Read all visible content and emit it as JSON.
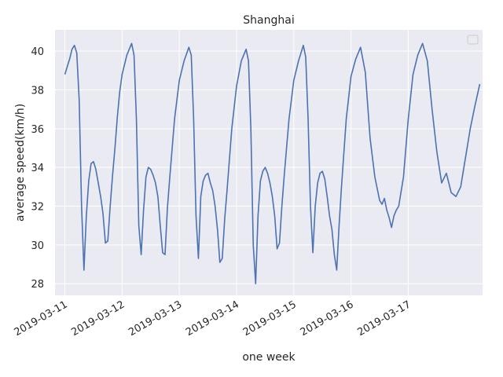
{
  "chart_data": {
    "type": "line",
    "title": "Shanghai",
    "xlabel": "one week",
    "ylabel": "average speed(km/h)",
    "x_ticks": [
      "2019-03-11",
      "2019-03-12",
      "2019-03-13",
      "2019-03-14",
      "2019-03-15",
      "2019-03-16",
      "2019-03-17"
    ],
    "x_range": [
      "2019-03-10T19:52",
      "2019-03-18T07:10"
    ],
    "y_ticks": [
      28,
      30,
      32,
      34,
      36,
      38,
      40
    ],
    "ylim": [
      27.4,
      41.1
    ],
    "grid": true,
    "legend": "top-right, empty",
    "colors": {
      "line": "#4c72b0",
      "background": "#eaeaf2",
      "grid": "#ffffff"
    },
    "series": [
      {
        "x": [
          "2019-03-11T00:00",
          "2019-03-11T01:00",
          "2019-03-11T02:00",
          "2019-03-11T03:00",
          "2019-03-11T04:00",
          "2019-03-11T05:00",
          "2019-03-11T06:00",
          "2019-03-11T07:00",
          "2019-03-11T08:00",
          "2019-03-11T09:00",
          "2019-03-11T10:00",
          "2019-03-11T11:00",
          "2019-03-11T12:00",
          "2019-03-11T13:00",
          "2019-03-11T14:00",
          "2019-03-11T15:00",
          "2019-03-11T16:00",
          "2019-03-11T17:00",
          "2019-03-11T18:00",
          "2019-03-11T19:00",
          "2019-03-11T20:00",
          "2019-03-11T21:00",
          "2019-03-11T22:00",
          "2019-03-11T23:00",
          "2019-03-12T00:00",
          "2019-03-12T02:00",
          "2019-03-12T04:00",
          "2019-03-12T05:00",
          "2019-03-12T06:00",
          "2019-03-12T07:00",
          "2019-03-12T08:00",
          "2019-03-12T09:00",
          "2019-03-12T10:00",
          "2019-03-12T11:00",
          "2019-03-12T12:00",
          "2019-03-12T13:00",
          "2019-03-12T14:00",
          "2019-03-12T15:00",
          "2019-03-12T16:00",
          "2019-03-12T17:00",
          "2019-03-12T18:00",
          "2019-03-12T19:00",
          "2019-03-12T20:00",
          "2019-03-12T22:00",
          "2019-03-13T00:00",
          "2019-03-13T02:00",
          "2019-03-13T04:00",
          "2019-03-13T05:00",
          "2019-03-13T06:00",
          "2019-03-13T07:00",
          "2019-03-13T08:00",
          "2019-03-13T09:00",
          "2019-03-13T10:00",
          "2019-03-13T11:00",
          "2019-03-13T12:00",
          "2019-03-13T13:00",
          "2019-03-13T14:00",
          "2019-03-13T15:00",
          "2019-03-13T16:00",
          "2019-03-13T17:00",
          "2019-03-13T18:00",
          "2019-03-13T19:00",
          "2019-03-13T20:00",
          "2019-03-13T22:00",
          "2019-03-14T00:00",
          "2019-03-14T02:00",
          "2019-03-14T04:00",
          "2019-03-14T05:00",
          "2019-03-14T06:00",
          "2019-03-14T07:00",
          "2019-03-14T08:00",
          "2019-03-14T09:00",
          "2019-03-14T10:00",
          "2019-03-14T11:00",
          "2019-03-14T12:00",
          "2019-03-14T13:00",
          "2019-03-14T14:00",
          "2019-03-14T15:00",
          "2019-03-14T16:00",
          "2019-03-14T17:00",
          "2019-03-14T18:00",
          "2019-03-14T19:00",
          "2019-03-14T20:00",
          "2019-03-14T22:00",
          "2019-03-15T00:00",
          "2019-03-15T02:00",
          "2019-03-15T04:00",
          "2019-03-15T05:00",
          "2019-03-15T06:00",
          "2019-03-15T07:00",
          "2019-03-15T08:00",
          "2019-03-15T09:00",
          "2019-03-15T10:00",
          "2019-03-15T11:00",
          "2019-03-15T12:00",
          "2019-03-15T13:00",
          "2019-03-15T14:00",
          "2019-03-15T15:00",
          "2019-03-15T16:00",
          "2019-03-15T17:00",
          "2019-03-15T18:00",
          "2019-03-15T19:00",
          "2019-03-15T20:00",
          "2019-03-15T22:00",
          "2019-03-16T00:00",
          "2019-03-16T02:00",
          "2019-03-16T04:00",
          "2019-03-16T06:00",
          "2019-03-16T08:00",
          "2019-03-16T10:00",
          "2019-03-16T12:00",
          "2019-03-16T13:00",
          "2019-03-16T14:00",
          "2019-03-16T15:00",
          "2019-03-16T16:00",
          "2019-03-16T17:00",
          "2019-03-16T18:00",
          "2019-03-16T19:00",
          "2019-03-16T20:00",
          "2019-03-16T22:00",
          "2019-03-17T00:00",
          "2019-03-17T02:00",
          "2019-03-17T04:00",
          "2019-03-17T06:00",
          "2019-03-17T08:00",
          "2019-03-17T10:00",
          "2019-03-17T12:00",
          "2019-03-17T14:00",
          "2019-03-17T16:00",
          "2019-03-17T18:00",
          "2019-03-17T20:00",
          "2019-03-17T22:00",
          "2019-03-18T00:00",
          "2019-03-18T02:00",
          "2019-03-18T04:00",
          "2019-03-18T06:00"
        ],
        "y": [
          38.8,
          39.2,
          39.6,
          40.1,
          40.3,
          39.9,
          37.5,
          32.0,
          28.7,
          31.5,
          33.3,
          34.2,
          34.3,
          33.9,
          33.2,
          32.5,
          31.6,
          30.1,
          30.2,
          32.0,
          33.6,
          35.0,
          36.6,
          37.9,
          38.8,
          39.8,
          40.4,
          39.8,
          36.5,
          31.0,
          29.5,
          31.8,
          33.5,
          34.0,
          33.9,
          33.6,
          33.2,
          32.5,
          31.0,
          29.6,
          29.5,
          31.9,
          33.5,
          36.5,
          38.5,
          39.5,
          40.2,
          39.8,
          36.5,
          31.5,
          29.3,
          32.5,
          33.3,
          33.6,
          33.7,
          33.2,
          32.8,
          32.0,
          30.8,
          29.1,
          29.3,
          31.3,
          32.8,
          36.0,
          38.2,
          39.5,
          40.1,
          39.5,
          36.0,
          30.0,
          28.0,
          31.5,
          33.3,
          33.8,
          34.0,
          33.7,
          33.2,
          32.5,
          31.5,
          29.8,
          30.1,
          32.0,
          33.6,
          36.5,
          38.5,
          39.5,
          40.3,
          39.7,
          36.5,
          32.0,
          29.6,
          32.0,
          33.2,
          33.7,
          33.8,
          33.4,
          32.5,
          31.5,
          30.8,
          29.5,
          28.7,
          31.0,
          33.0,
          36.5,
          38.7,
          39.6,
          40.2,
          38.9,
          35.5,
          33.5,
          32.3,
          32.1,
          32.4,
          31.8,
          31.4,
          30.9,
          31.5,
          31.8,
          32.0,
          33.5,
          36.5,
          38.8,
          39.8,
          40.4,
          39.5,
          37.0,
          34.8,
          33.2,
          33.7,
          32.7,
          32.5,
          33.0,
          34.5,
          36.0,
          37.2,
          38.3
        ]
      }
    ]
  }
}
